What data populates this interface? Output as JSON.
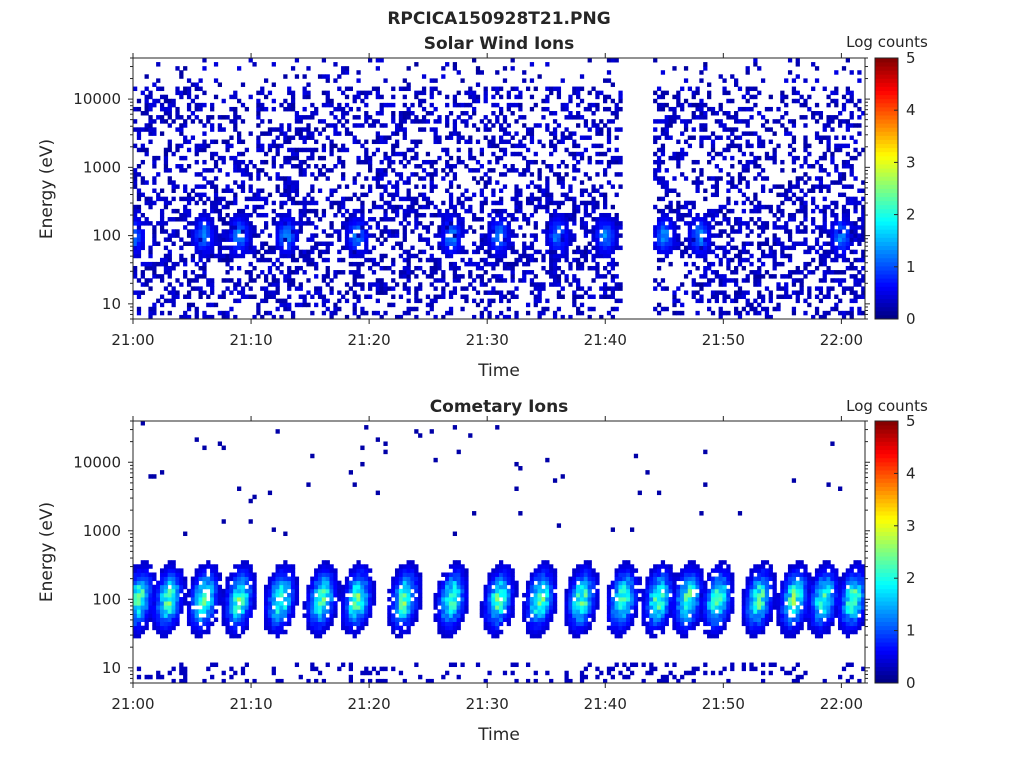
{
  "figure": {
    "title": "RPCICA150928T21.PNG"
  },
  "chart_data": [
    {
      "type": "heatmap",
      "title": "Solar Wind Ions",
      "xlabel": "Time",
      "ylabel": "Energy (eV)",
      "x_ticks": [
        "21:00",
        "21:10",
        "21:20",
        "21:30",
        "21:40",
        "21:50",
        "22:00"
      ],
      "xlim": [
        "21:00",
        "22:02"
      ],
      "y_ticks": [
        "10",
        "100",
        "1000",
        "10000"
      ],
      "y_scale": "log",
      "ylim": [
        6,
        40000
      ],
      "data_gap": [
        "21:41.5",
        "21:44"
      ],
      "colorbar": {
        "label": "Log counts",
        "ticks": [
          "0",
          "1",
          "2",
          "3",
          "4",
          "5"
        ],
        "range": [
          0,
          5
        ],
        "colormap": "jet"
      },
      "low_energy_bursts_minutes": [
        0,
        6,
        9,
        13,
        19,
        27,
        31,
        36,
        40,
        45,
        48,
        60
      ]
    },
    {
      "type": "heatmap",
      "title": "Cometary Ions",
      "xlabel": "Time",
      "ylabel": "Energy (eV)",
      "x_ticks": [
        "21:00",
        "21:10",
        "21:20",
        "21:30",
        "21:40",
        "21:50",
        "22:00"
      ],
      "xlim": [
        "21:00",
        "22:02"
      ],
      "y_ticks": [
        "10",
        "100",
        "1000",
        "10000"
      ],
      "y_scale": "log",
      "ylim": [
        6,
        40000
      ],
      "colorbar": {
        "label": "Log counts",
        "ticks": [
          "0",
          "1",
          "2",
          "3",
          "4",
          "5"
        ],
        "range": [
          0,
          5
        ],
        "colormap": "jet"
      },
      "plume_centers_minutes": [
        0.5,
        3,
        6,
        9,
        12.5,
        16,
        19,
        23,
        27,
        31,
        34.5,
        38,
        41.5,
        44.5,
        47,
        49.5,
        53,
        56,
        58.5,
        61
      ],
      "plume_peak_log_counts": 2.6
    }
  ]
}
